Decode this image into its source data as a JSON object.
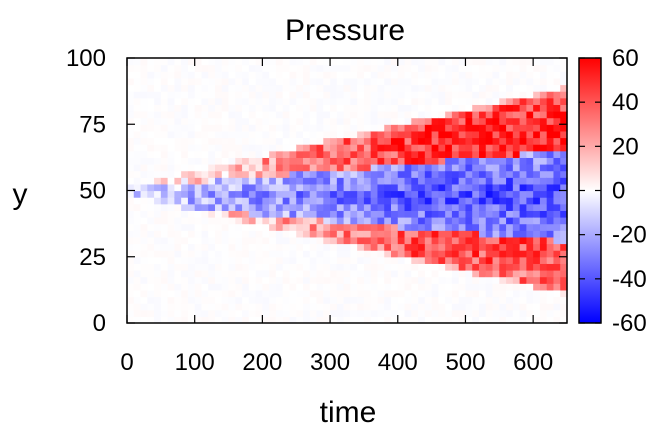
{
  "chart_data": {
    "type": "heatmap",
    "title": "Pressure",
    "xlabel": "time",
    "ylabel": "y",
    "xlim": [
      0,
      650
    ],
    "ylim": [
      0,
      100
    ],
    "xticks": [
      0,
      100,
      200,
      300,
      400,
      500,
      600
    ],
    "yticks": [
      0,
      25,
      50,
      75,
      100
    ],
    "colorbar": {
      "min": -60,
      "max": 60,
      "ticks": [
        60,
        40,
        20,
        0,
        -20,
        -40,
        -60
      ],
      "colormap": [
        "#0000ff",
        "#ffffff",
        "#ff0000"
      ]
    },
    "grid": false,
    "x_step": 10,
    "y_step": 2.5,
    "regions": {
      "wedge_center_y": 50,
      "wedge_start_halfwidth": 2,
      "wedge_growth_per_time": 0.058,
      "negative_core_y": 48,
      "negative_core_halfwidth_start": 3,
      "negative_core_growth_per_time": 0.022,
      "upper_positive_peak": 50,
      "lower_positive_peak": 42,
      "negative_core_peak": -42
    }
  }
}
